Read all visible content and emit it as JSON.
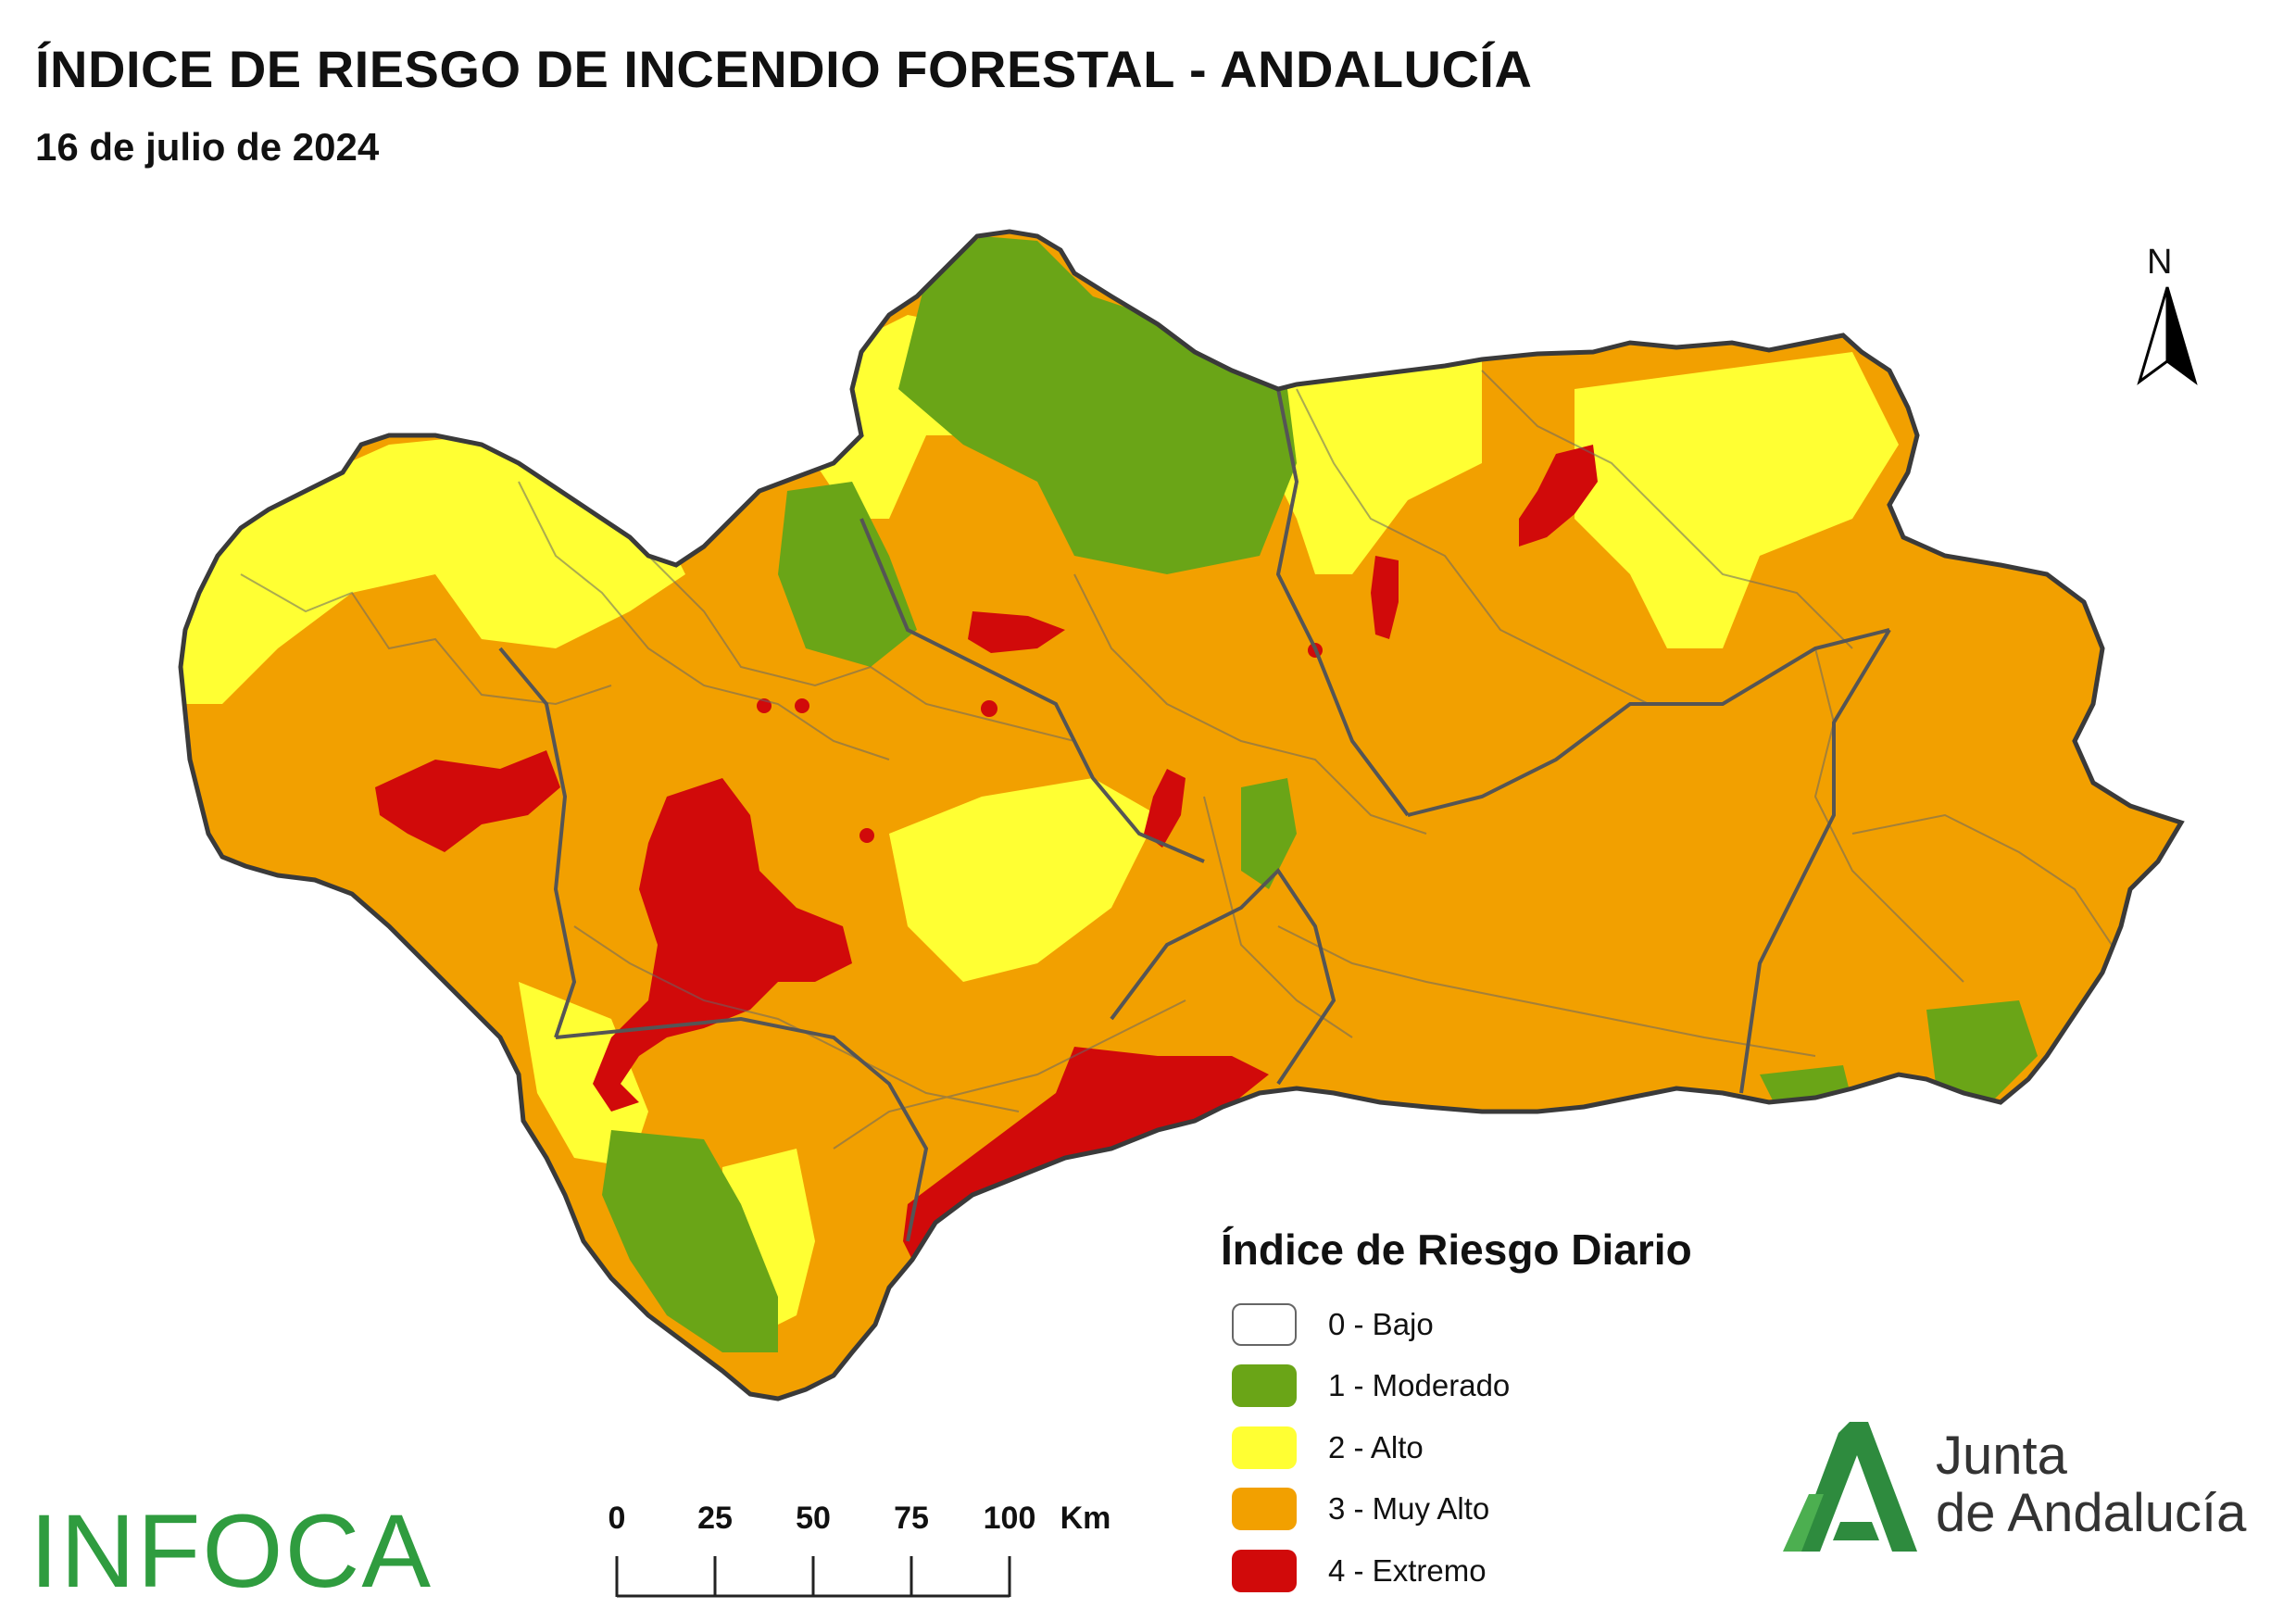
{
  "header": {
    "title": "ÍNDICE DE RIESGO DE INCENDIO FORESTAL - ANDALUCÍA",
    "subtitle": "16 de julio de 2024"
  },
  "north_arrow": {
    "label": "N"
  },
  "legend": {
    "title": "Índice de Riesgo Diario",
    "items": [
      {
        "label": "0 - Bajo",
        "color": "#ffffff"
      },
      {
        "label": "1 - Moderado",
        "color": "#6aa517"
      },
      {
        "label": "2 - Alto",
        "color": "#ffff33"
      },
      {
        "label": "3 - Muy Alto",
        "color": "#f2a000"
      },
      {
        "label": "4 - Extremo",
        "color": "#d10a0a"
      }
    ]
  },
  "scale": {
    "ticks": [
      "0",
      "25",
      "50",
      "75",
      "100"
    ],
    "unit": "Km"
  },
  "logos": {
    "infoca": "INFOCA",
    "junta_line1": "Junta",
    "junta_line2": "de Andalucía",
    "junta_color": "#2e8b3e"
  },
  "map_colors": {
    "moderado": "#6aa517",
    "alto": "#ffff33",
    "muy_alto": "#f2a000",
    "extremo": "#d10a0a",
    "borders": "#555555"
  }
}
